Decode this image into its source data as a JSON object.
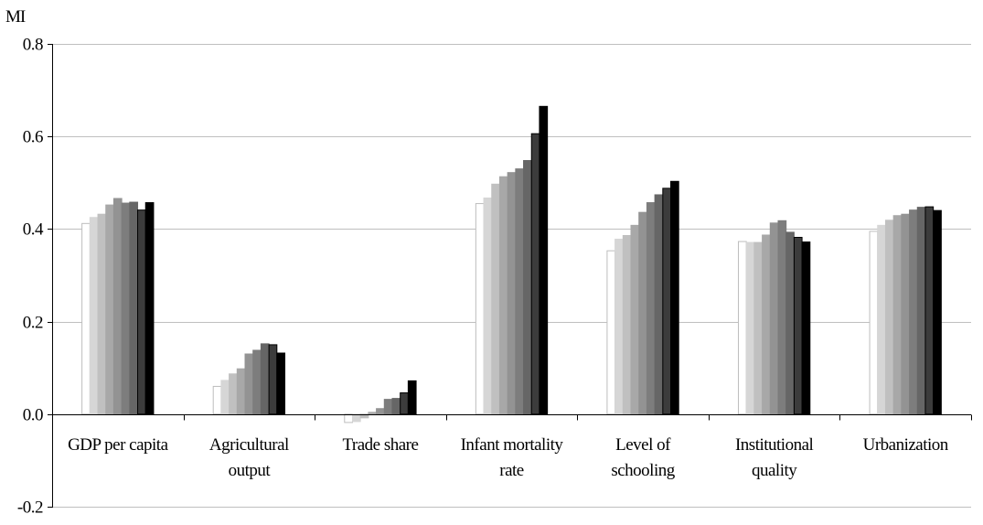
{
  "chart_data": {
    "type": "bar",
    "ylabel": "MI",
    "ylim": [
      -0.2,
      0.8
    ],
    "yticks": [
      -0.2,
      0.0,
      0.2,
      0.4,
      0.6,
      0.8
    ],
    "ytick_labels": [
      "-0.2",
      "0.0",
      "0.2",
      "0.4",
      "0.6",
      "0.8"
    ],
    "grid": true,
    "legend": "none",
    "categories": [
      [
        "GDP per capita"
      ],
      [
        "Agricultural",
        "output"
      ],
      [
        "Trade share"
      ],
      [
        "Infant mortality",
        "rate"
      ],
      [
        "Level of",
        "schooling"
      ],
      [
        "Institutional",
        "quality"
      ],
      [
        "Urbanization"
      ]
    ],
    "series_colors": [
      "#ffffff",
      "#d6d6d6",
      "#c0c0c0",
      "#a8a8a8",
      "#939393",
      "#7d7d7d",
      "#666666",
      "#3c3c3c",
      "#000000"
    ],
    "series_borders": [
      "#bdbdbd",
      "#d6d6d6",
      "#c0c0c0",
      "#a8a8a8",
      "#939393",
      "#7d7d7d",
      "#666666",
      "#000000",
      "#000000"
    ],
    "values": [
      [
        0.412,
        0.425,
        0.432,
        0.452,
        0.466,
        0.456,
        0.458,
        0.441,
        0.457
      ],
      [
        0.06,
        0.073,
        0.087,
        0.098,
        0.13,
        0.138,
        0.152,
        0.15,
        0.132
      ],
      [
        -0.018,
        -0.016,
        -0.008,
        0.004,
        0.012,
        0.032,
        0.034,
        0.046,
        0.072
      ],
      [
        0.455,
        0.467,
        0.497,
        0.513,
        0.522,
        0.53,
        0.548,
        0.606,
        0.665
      ],
      [
        0.353,
        0.378,
        0.386,
        0.408,
        0.436,
        0.457,
        0.474,
        0.488,
        0.503
      ],
      [
        0.373,
        0.371,
        0.371,
        0.387,
        0.413,
        0.418,
        0.393,
        0.382,
        0.372
      ],
      [
        0.395,
        0.408,
        0.419,
        0.429,
        0.432,
        0.441,
        0.447,
        0.448,
        0.44
      ]
    ]
  }
}
